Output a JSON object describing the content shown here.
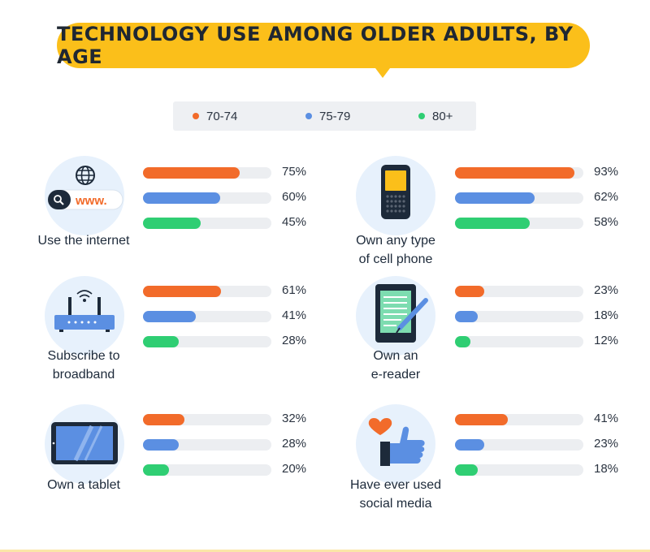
{
  "title": "TECHNOLOGY USE AMONG OLDER ADULTS, BY AGE",
  "colors": {
    "accent": "#fbbf1a",
    "s1": "#f26b2a",
    "s2": "#5b8fe2",
    "s3": "#2fce73"
  },
  "legend": [
    {
      "label": "70-74",
      "color": "#f26b2a"
    },
    {
      "label": "75-79",
      "color": "#5b8fe2"
    },
    {
      "label": "80+",
      "color": "#2fce73"
    }
  ],
  "chart_data": {
    "type": "bar",
    "title": "TECHNOLOGY USE AMONG OLDER ADULTS, BY AGE",
    "categories": [
      "Use the internet",
      "Own any type of cell phone",
      "Subscribe to broadband",
      "Own an e-reader",
      "Own a tablet",
      "Have ever used social media"
    ],
    "series": [
      {
        "name": "70-74",
        "values": [
          75,
          93,
          61,
          23,
          32,
          41
        ]
      },
      {
        "name": "75-79",
        "values": [
          60,
          62,
          41,
          18,
          28,
          23
        ]
      },
      {
        "name": "80+",
        "values": [
          45,
          58,
          28,
          12,
          20,
          18
        ]
      }
    ],
    "ylim": [
      0,
      100
    ],
    "unit": "%"
  },
  "panels": [
    {
      "lines": [
        "Use the internet"
      ],
      "icon": "internet-icon",
      "icon_text": "www.",
      "values": [
        {
          "v": 75,
          "t": "75%"
        },
        {
          "v": 60,
          "t": "60%"
        },
        {
          "v": 45,
          "t": "45%"
        }
      ]
    },
    {
      "lines": [
        "Own any type",
        "of cell phone"
      ],
      "icon": "cell-phone-icon",
      "icon_text": "",
      "values": [
        {
          "v": 93,
          "t": "93%"
        },
        {
          "v": 62,
          "t": "62%"
        },
        {
          "v": 58,
          "t": "58%"
        }
      ]
    },
    {
      "lines": [
        "Subscribe to",
        "broadband"
      ],
      "icon": "router-icon",
      "icon_text": "",
      "values": [
        {
          "v": 61,
          "t": "61%"
        },
        {
          "v": 41,
          "t": "41%"
        },
        {
          "v": 28,
          "t": "28%"
        }
      ]
    },
    {
      "lines": [
        "Own an",
        "e-reader"
      ],
      "icon": "e-reader-icon",
      "icon_text": "",
      "values": [
        {
          "v": 23,
          "t": "23%"
        },
        {
          "v": 18,
          "t": "18%"
        },
        {
          "v": 12,
          "t": "12%"
        }
      ]
    },
    {
      "lines": [
        "Own a tablet"
      ],
      "icon": "tablet-icon",
      "icon_text": "",
      "values": [
        {
          "v": 32,
          "t": "32%"
        },
        {
          "v": 28,
          "t": "28%"
        },
        {
          "v": 20,
          "t": "20%"
        }
      ]
    },
    {
      "lines": [
        "Have ever used",
        "social media"
      ],
      "icon": "social-media-icon",
      "icon_text": "",
      "values": [
        {
          "v": 41,
          "t": "41%"
        },
        {
          "v": 23,
          "t": "23%"
        },
        {
          "v": 18,
          "t": "18%"
        }
      ]
    }
  ]
}
